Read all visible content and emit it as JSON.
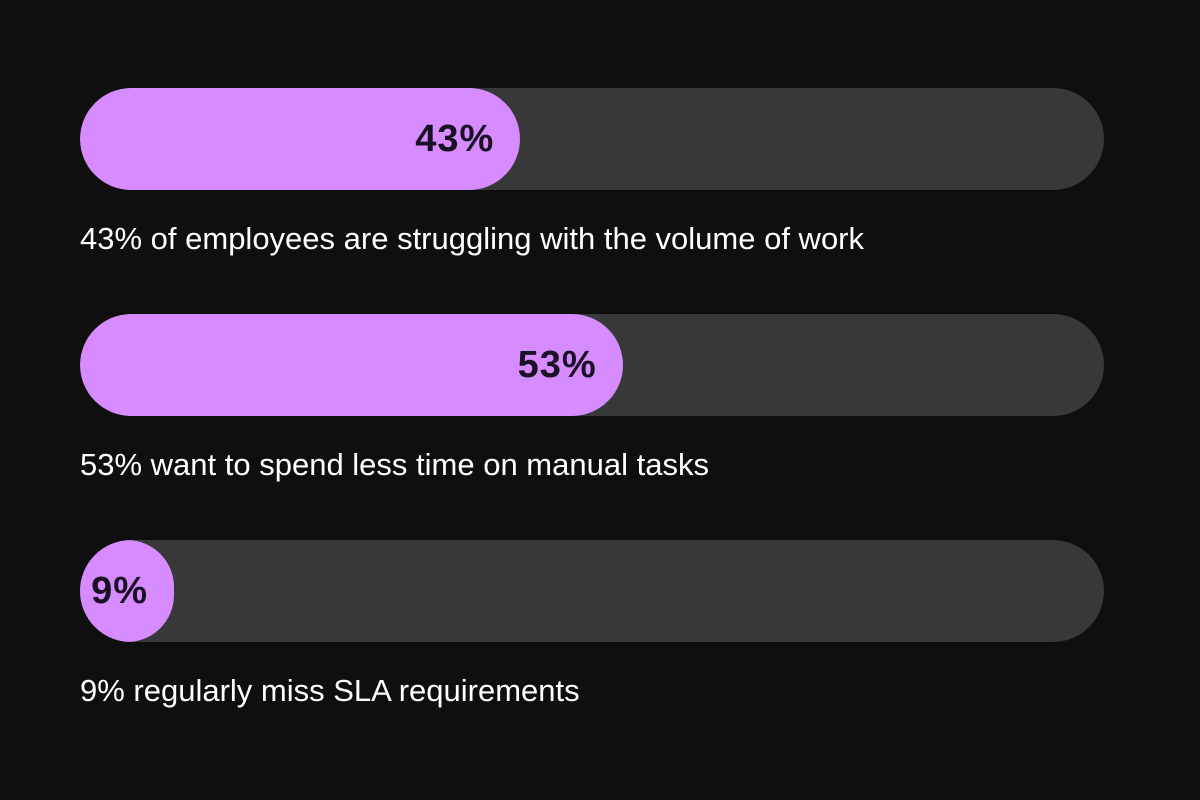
{
  "colors": {
    "background": "#0f0f0f",
    "track": "#383838",
    "fill": "#d68bff",
    "value_text": "#1a1124",
    "label_text": "#ffffff"
  },
  "chart_data": {
    "type": "bar",
    "orientation": "horizontal",
    "ylim": [
      0,
      100
    ],
    "bars": [
      {
        "value": 43,
        "value_label": "43%",
        "label": "43% of employees are struggling with the volume of work"
      },
      {
        "value": 53,
        "value_label": "53%",
        "label": "53% want to spend less time on manual tasks"
      },
      {
        "value": 9,
        "value_label": "9%",
        "label": "9% regularly miss SLA requirements"
      }
    ]
  }
}
